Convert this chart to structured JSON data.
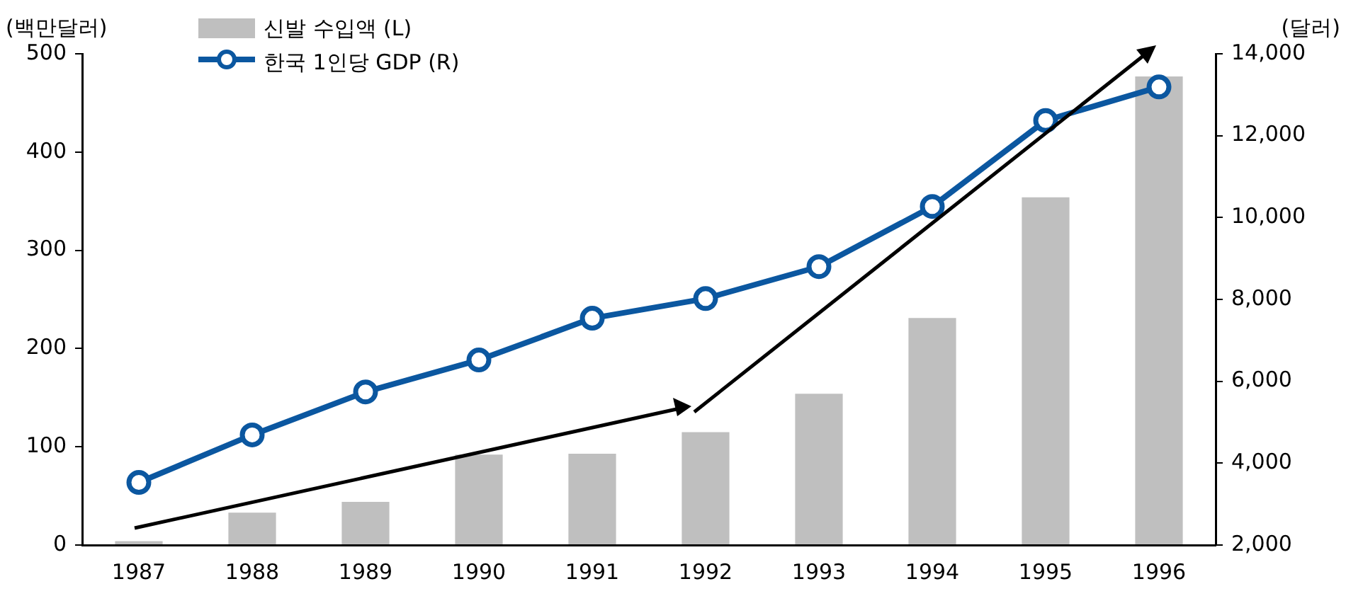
{
  "chart_data": {
    "type": "bar",
    "ylabel": "(백만달러)",
    "y2label": "(달러)",
    "categories": [
      "1987",
      "1988",
      "1989",
      "1990",
      "1991",
      "1992",
      "1993",
      "1994",
      "1995",
      "1996"
    ],
    "series": [
      {
        "name": "신발 수입액 (L)",
        "color": "#bfbfbf",
        "values": [
          4,
          33,
          44,
          92,
          93,
          115,
          154,
          231,
          354,
          477
        ]
      },
      {
        "name": "한국 1인당 GDP (R)",
        "type": "line",
        "axis": "y2",
        "color": "#0b57a0",
        "marker": "circle",
        "values": [
          3530,
          4690,
          5740,
          6520,
          7540,
          8020,
          8800,
          10270,
          12370,
          13190
        ]
      }
    ],
    "ylim": [
      0,
      500
    ],
    "yticks": [
      0,
      100,
      200,
      300,
      400,
      500
    ],
    "y2lim": [
      2000,
      14000
    ],
    "y2ticks": [
      {
        "value": 2000,
        "label": "2,000"
      },
      {
        "value": 4000,
        "label": "4,000"
      },
      {
        "value": 6000,
        "label": "6,000"
      },
      {
        "value": 8000,
        "label": "8,000"
      },
      {
        "value": 10000,
        "label": "10,000"
      },
      {
        "value": 12000,
        "label": "12,000"
      },
      {
        "value": 14000,
        "label": "14,000"
      }
    ],
    "legend": "top left"
  }
}
